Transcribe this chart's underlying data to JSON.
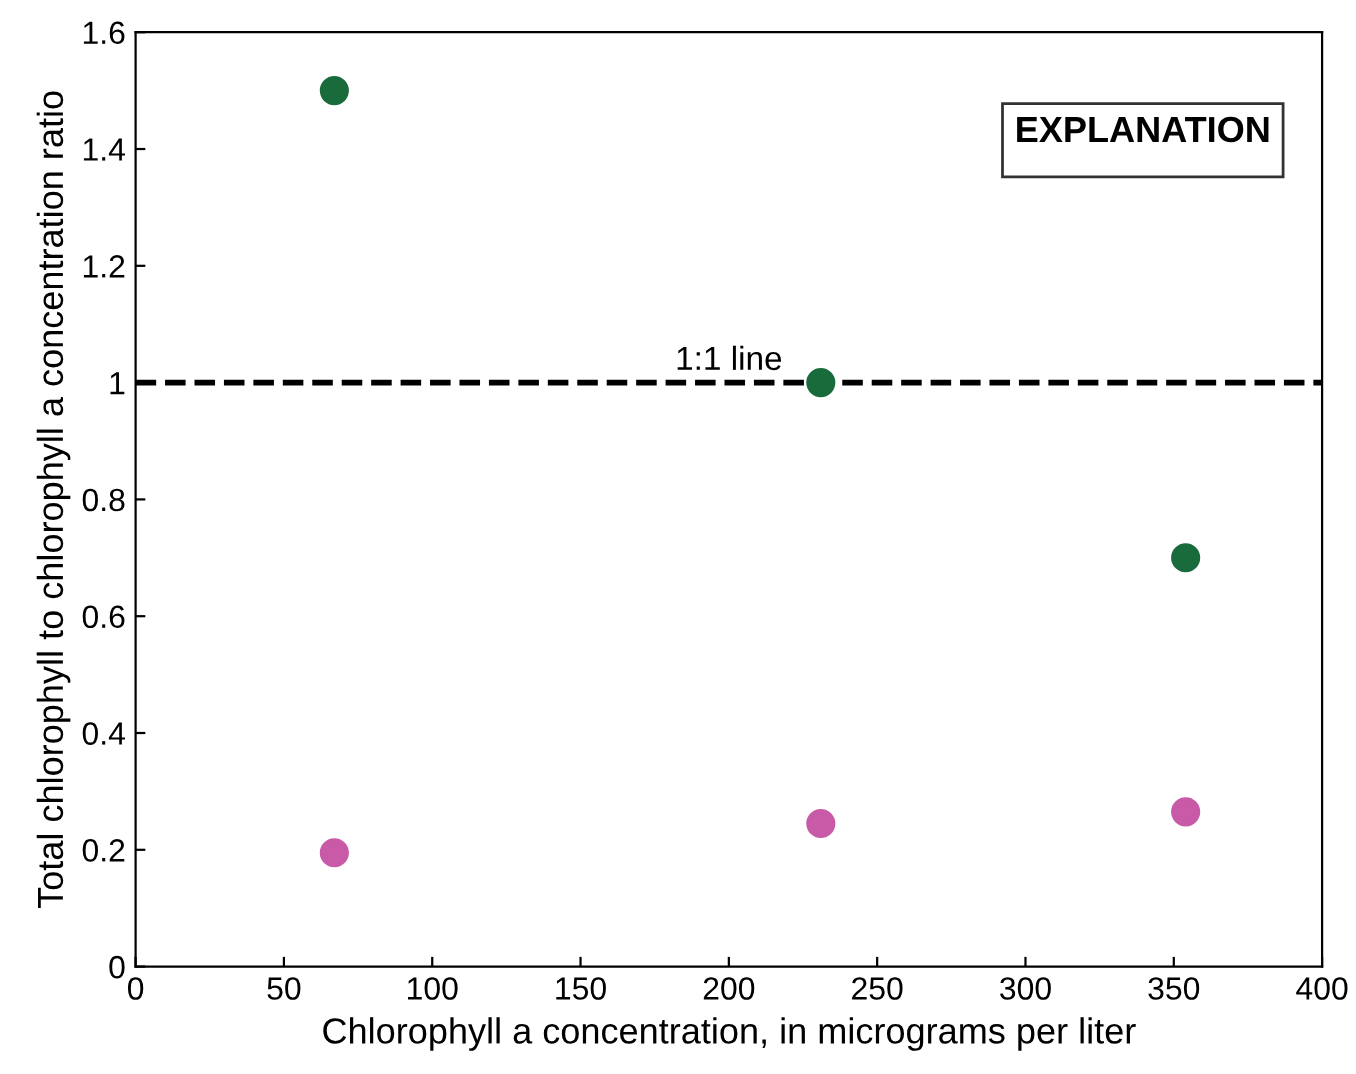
{
  "chart_data": {
    "type": "scatter",
    "xlabel": "Chlorophyll a concentration, in micrograms per liter",
    "ylabel": "Total chlorophyll to chlorophyll a concentration ratio",
    "legend_title": "EXPLANATION",
    "legend": "top right",
    "marker": "circle",
    "grid": false,
    "xlim": [
      0,
      400
    ],
    "xticks": [
      0,
      50,
      100,
      150,
      200,
      250,
      300,
      350,
      400
    ],
    "ylim": [
      0,
      1.6
    ],
    "yticks": [
      0,
      0.2,
      0.4,
      0.6,
      0.8,
      1,
      1.2,
      1.4,
      1.6
    ],
    "x": [
      67,
      231,
      354
    ],
    "series": [
      {
        "color": "#1a6b3c",
        "values": [
          1.5,
          1.0,
          0.7
        ]
      },
      {
        "color": "#c85aa8",
        "values": [
          0.195,
          0.245,
          0.265
        ]
      }
    ],
    "ref_lines": [
      {
        "axis": "y",
        "value": 1,
        "label": "1:1 line",
        "line_style": "dashed",
        "color": "#000000"
      }
    ]
  }
}
